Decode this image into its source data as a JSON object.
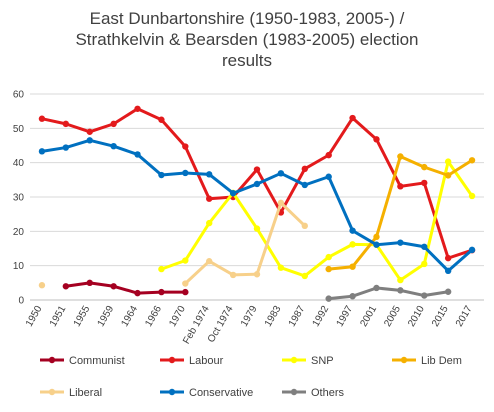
{
  "chart_data": {
    "type": "line",
    "title_lines": [
      "East Dunbartonshire (1950-1983, 2005-) /",
      "Strathkelvin & Bearsden (1983-2005) election",
      "results"
    ],
    "x": [
      "1950",
      "1951",
      "1955",
      "1959",
      "1964",
      "1966",
      "1970",
      "Feb 1974",
      "Oct 1974",
      "1979",
      "1983",
      "1987",
      "1992",
      "1997",
      "2001",
      "2005",
      "2010",
      "2015",
      "2017"
    ],
    "ylim": [
      0,
      60
    ],
    "yticks": [
      0,
      10,
      20,
      30,
      40,
      50,
      60
    ],
    "grid": true,
    "legend_position": "bottom",
    "series": [
      {
        "name": "Communist",
        "color": "#a50021",
        "values": [
          null,
          4,
          5,
          4,
          2,
          2.3,
          2.3,
          null,
          null,
          null,
          null,
          null,
          null,
          null,
          null,
          null,
          null,
          null,
          null
        ]
      },
      {
        "name": "Labour",
        "color": "#e31a1c",
        "values": [
          52.8,
          51.3,
          49,
          51.3,
          55.7,
          52.5,
          44.7,
          29.5,
          30,
          38,
          25.5,
          38.2,
          42.2,
          53,
          46.8,
          33.1,
          34.1,
          12.2,
          14.5
        ]
      },
      {
        "name": "SNP",
        "color": "#ffff00",
        "values": [
          null,
          null,
          null,
          null,
          null,
          9,
          11.5,
          22.4,
          31.2,
          20.8,
          9.4,
          7,
          12.5,
          16.2,
          16.1,
          5.8,
          10.5,
          40.3,
          30.3
        ]
      },
      {
        "name": "Lib Dem",
        "color": "#f5b000",
        "values": [
          null,
          null,
          null,
          null,
          null,
          null,
          null,
          null,
          null,
          null,
          null,
          null,
          9,
          9.7,
          18.4,
          41.8,
          38.7,
          36.3,
          40.7
        ]
      },
      {
        "name": "Liberal",
        "color": "#f7d08a",
        "values": [
          4.3,
          null,
          null,
          null,
          null,
          null,
          4.8,
          11.3,
          7.3,
          7.5,
          28.3,
          21.6,
          null,
          null,
          null,
          null,
          null,
          null,
          null
        ]
      },
      {
        "name": "Conservative",
        "color": "#0070c0",
        "values": [
          43.3,
          44.4,
          46.5,
          44.8,
          42.4,
          36.4,
          37,
          36.6,
          31.1,
          33.8,
          36.9,
          33.5,
          35.9,
          20.2,
          16.1,
          16.7,
          15.5,
          8.5,
          14.6
        ]
      },
      {
        "name": "Others",
        "color": "#7f7f7f",
        "values": [
          null,
          null,
          null,
          null,
          null,
          null,
          null,
          null,
          null,
          null,
          null,
          null,
          0.4,
          1.1,
          3.5,
          2.8,
          1.3,
          2.4,
          null
        ]
      }
    ]
  }
}
